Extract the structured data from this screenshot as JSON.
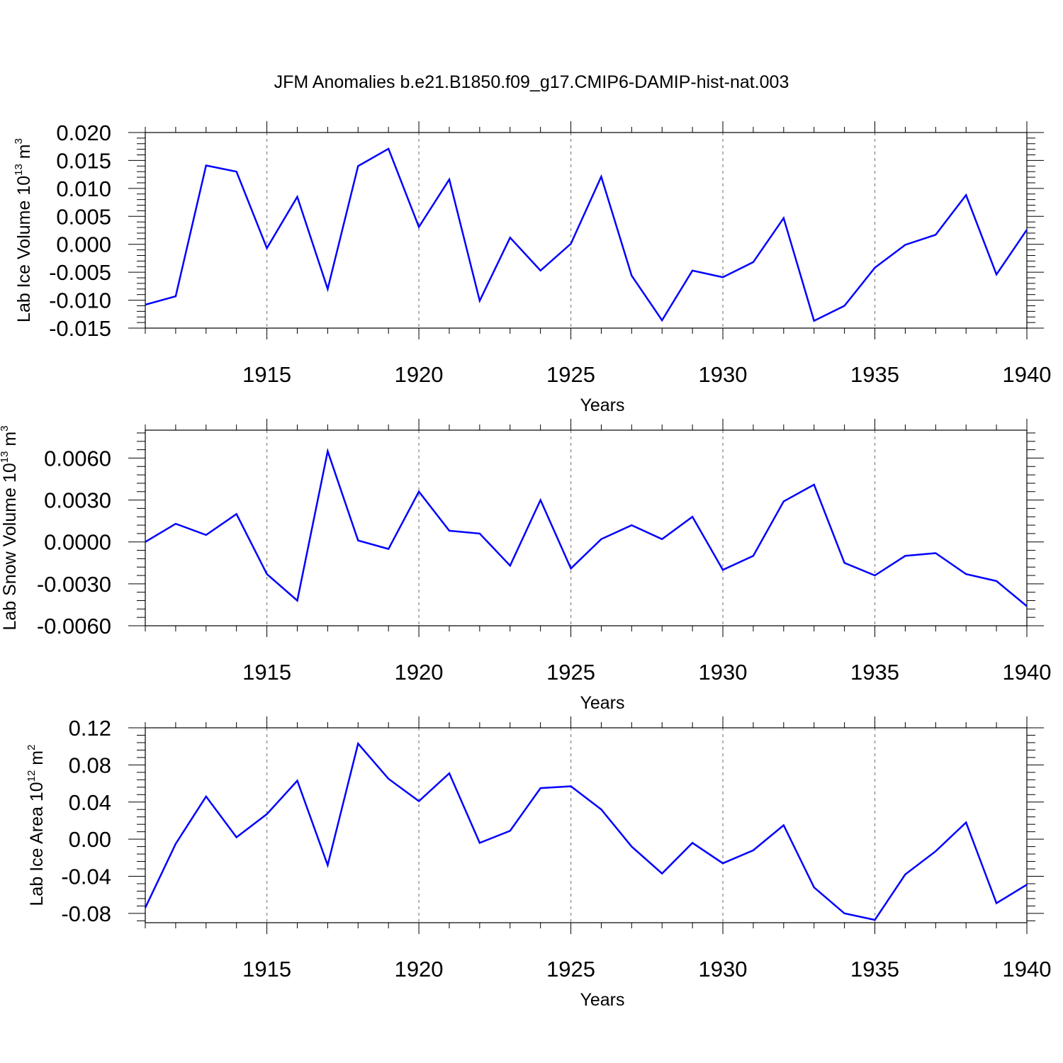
{
  "title": "JFM Anomalies b.e21.B1850.f09_g17.CMIP6-DAMIP-hist-nat.003",
  "colors": {
    "line": "#0000ff",
    "axis": "#000000",
    "grid": "#808080"
  },
  "chart_data": [
    {
      "type": "line",
      "ylabel": "Lab Ice Volume 10",
      "ylabel_exp": "13",
      "ylabel_unit": " m",
      "ylabel_unit_exp": "3",
      "xlabel": "Years",
      "xlim": [
        1911,
        1940
      ],
      "ylim": [
        -0.015,
        0.02
      ],
      "yticks": [
        0.02,
        0.015,
        0.01,
        0.005,
        0.0,
        -0.005,
        -0.01,
        -0.015
      ],
      "ytick_labels": [
        "0.020",
        "0.015",
        "0.010",
        "0.005",
        "0.000",
        "-0.005",
        "-0.010",
        "-0.015"
      ],
      "xticks": [
        1915,
        1920,
        1925,
        1930,
        1935,
        1940
      ],
      "xtick_labels": [
        "1915",
        "1920",
        "1925",
        "1930",
        "1935",
        "1940"
      ],
      "grid": "vertical dashed at major ticks",
      "series": [
        {
          "x": [
            1911,
            1912,
            1913,
            1914,
            1915,
            1916,
            1917,
            1918,
            1919,
            1920,
            1921,
            1922,
            1923,
            1924,
            1925,
            1926,
            1927,
            1928,
            1929,
            1930,
            1931,
            1932,
            1933,
            1934,
            1935,
            1936,
            1937,
            1938,
            1939,
            1940
          ],
          "values": [
            -0.0108,
            -0.0093,
            0.0141,
            0.013,
            -0.0007,
            0.0085,
            -0.008,
            0.014,
            0.0171,
            0.0031,
            0.0116,
            -0.0101,
            0.0012,
            -0.0047,
            0.0001,
            0.0121,
            -0.0056,
            -0.0136,
            -0.0047,
            -0.0059,
            -0.0032,
            0.0047,
            -0.0137,
            -0.011,
            -0.0042,
            -0.0001,
            0.0017,
            0.0088,
            -0.0054,
            0.0026
          ]
        }
      ]
    },
    {
      "type": "line",
      "ylabel": "Lab Snow Volume 10",
      "ylabel_exp": "13",
      "ylabel_unit": " m",
      "ylabel_unit_exp": "3",
      "xlabel": "Years",
      "xlim": [
        1911,
        1940
      ],
      "ylim": [
        -0.006,
        0.008
      ],
      "yticks": [
        0.006,
        0.003,
        0.0,
        -0.003,
        -0.006
      ],
      "ytick_labels": [
        "0.0060",
        "0.0030",
        "0.0000",
        "-0.0030",
        "-0.0060"
      ],
      "xticks": [
        1915,
        1920,
        1925,
        1930,
        1935,
        1940
      ],
      "xtick_labels": [
        "1915",
        "1920",
        "1925",
        "1930",
        "1935",
        "1940"
      ],
      "grid": "vertical dashed at major ticks",
      "series": [
        {
          "x": [
            1911,
            1912,
            1913,
            1914,
            1915,
            1916,
            1917,
            1918,
            1919,
            1920,
            1921,
            1922,
            1923,
            1924,
            1925,
            1926,
            1927,
            1928,
            1929,
            1930,
            1931,
            1932,
            1933,
            1934,
            1935,
            1936,
            1937,
            1938,
            1939,
            1940
          ],
          "values": [
            0.0,
            0.0013,
            0.0005,
            0.002,
            -0.0023,
            -0.0042,
            0.0065,
            0.0001,
            -0.0005,
            0.0036,
            0.0008,
            0.0006,
            -0.0017,
            0.003,
            -0.0019,
            0.0002,
            0.0012,
            0.0002,
            0.0018,
            -0.002,
            -0.001,
            0.0029,
            0.0041,
            -0.0015,
            -0.0024,
            -0.001,
            -0.0008,
            -0.0023,
            -0.0028,
            -0.0046
          ]
        }
      ]
    },
    {
      "type": "line",
      "ylabel": "Lab Ice Area 10",
      "ylabel_exp": "12",
      "ylabel_unit": " m",
      "ylabel_unit_exp": "2",
      "xlabel": "Years",
      "xlim": [
        1911,
        1940
      ],
      "ylim": [
        -0.09,
        0.12
      ],
      "yticks": [
        0.12,
        0.08,
        0.04,
        0.0,
        -0.04,
        -0.08
      ],
      "ytick_labels": [
        "0.12",
        "0.08",
        "0.04",
        "0.00",
        "-0.04",
        "-0.08"
      ],
      "xticks": [
        1915,
        1920,
        1925,
        1930,
        1935,
        1940
      ],
      "xtick_labels": [
        "1915",
        "1920",
        "1925",
        "1930",
        "1935",
        "1940"
      ],
      "grid": "vertical dashed at major ticks",
      "series": [
        {
          "x": [
            1911,
            1912,
            1913,
            1914,
            1915,
            1916,
            1917,
            1918,
            1919,
            1920,
            1921,
            1922,
            1923,
            1924,
            1925,
            1926,
            1927,
            1928,
            1929,
            1930,
            1931,
            1932,
            1933,
            1934,
            1935,
            1936,
            1937,
            1938,
            1939,
            1940
          ],
          "values": [
            -0.074,
            -0.005,
            0.046,
            0.002,
            0.027,
            0.063,
            -0.028,
            0.103,
            0.065,
            0.041,
            0.071,
            -0.004,
            0.009,
            0.055,
            0.057,
            0.032,
            -0.008,
            -0.037,
            -0.004,
            -0.026,
            -0.012,
            0.015,
            -0.052,
            -0.08,
            -0.087,
            -0.038,
            -0.013,
            0.018,
            -0.069,
            -0.049
          ]
        }
      ]
    }
  ]
}
